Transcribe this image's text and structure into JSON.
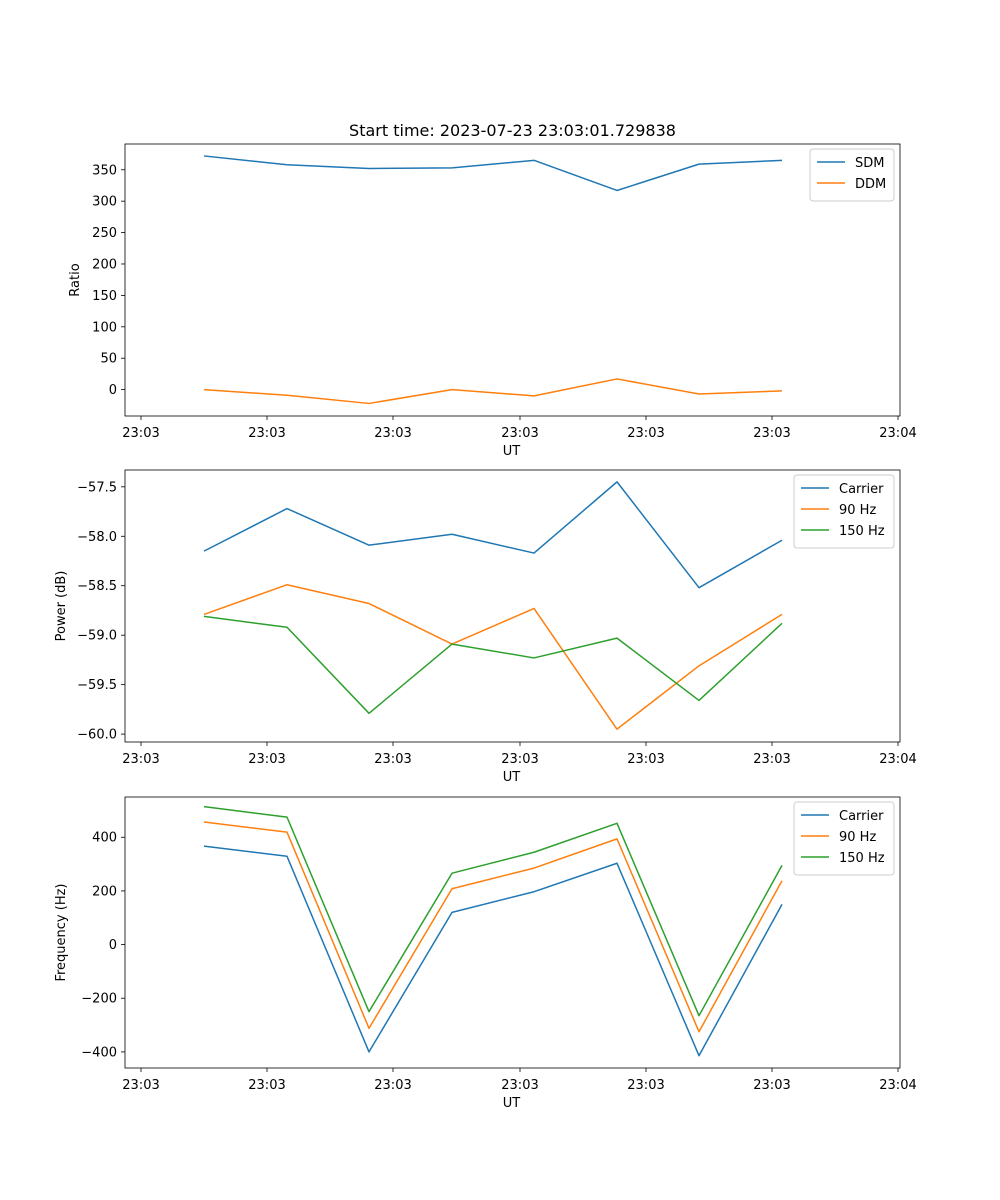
{
  "chart_data": [
    {
      "type": "line",
      "title": "Start time: 2023-07-23 23:03:01.729838",
      "xlabel": "UT",
      "ylabel": "Ratio",
      "x_ticks": [
        "23:03",
        "23:03",
        "23:03",
        "23:03",
        "23:03",
        "23:03",
        "23:04"
      ],
      "ylim": [
        -42,
        391
      ],
      "y_ticks": [
        0,
        50,
        100,
        150,
        200,
        250,
        300,
        350
      ],
      "y_tick_labels": [
        "0",
        "50",
        "100",
        "150",
        "200",
        "250",
        "300",
        "350"
      ],
      "legend": "top-right",
      "series": [
        {
          "name": "SDM",
          "color": "#1f77b4",
          "values": [
            372,
            358,
            352,
            353,
            365,
            317,
            359,
            365
          ]
        },
        {
          "name": "DDM",
          "color": "#ff7f0e",
          "values": [
            0,
            -9,
            -22,
            0,
            -10,
            17,
            -7,
            -2
          ]
        }
      ]
    },
    {
      "type": "line",
      "title": "",
      "xlabel": "UT",
      "ylabel": "Power (dB)",
      "x_ticks": [
        "23:03",
        "23:03",
        "23:03",
        "23:03",
        "23:03",
        "23:03",
        "23:04"
      ],
      "ylim": [
        -60.08,
        -57.33
      ],
      "y_ticks": [
        -60.0,
        -59.5,
        -59.0,
        -58.5,
        -58.0,
        -57.5
      ],
      "y_tick_labels": [
        "−60.0",
        "−59.5",
        "−59.0",
        "−58.5",
        "−58.0",
        "−57.5"
      ],
      "legend": "top-right",
      "series": [
        {
          "name": "Carrier",
          "color": "#1f77b4",
          "values": [
            -58.15,
            -57.72,
            -58.09,
            -57.98,
            -58.17,
            -57.45,
            -58.52,
            -58.04
          ]
        },
        {
          "name": "90 Hz",
          "color": "#ff7f0e",
          "values": [
            -58.79,
            -58.49,
            -58.68,
            -59.09,
            -58.73,
            -59.95,
            -59.31,
            -58.79
          ]
        },
        {
          "name": "150 Hz",
          "color": "#2ca02c",
          "values": [
            -58.81,
            -58.92,
            -59.79,
            -59.09,
            -59.23,
            -59.03,
            -59.66,
            -58.88
          ]
        }
      ]
    },
    {
      "type": "line",
      "title": "",
      "xlabel": "UT",
      "ylabel": "Frequency (Hz)",
      "x_ticks": [
        "23:03",
        "23:03",
        "23:03",
        "23:03",
        "23:03",
        "23:03",
        "23:04"
      ],
      "ylim": [
        -460,
        550
      ],
      "y_ticks": [
        -400,
        -200,
        0,
        200,
        400
      ],
      "y_tick_labels": [
        "−400",
        "−200",
        "0",
        "200",
        "400"
      ],
      "legend": "top-right",
      "series": [
        {
          "name": "Carrier",
          "color": "#1f77b4",
          "values": [
            367,
            329,
            -400,
            120,
            197,
            303,
            -414,
            150
          ]
        },
        {
          "name": "90 Hz",
          "color": "#ff7f0e",
          "values": [
            457,
            419,
            -312,
            208,
            285,
            394,
            -325,
            238
          ]
        },
        {
          "name": "150 Hz",
          "color": "#2ca02c",
          "values": [
            514,
            475,
            -250,
            266,
            344,
            452,
            -265,
            295
          ]
        }
      ]
    }
  ]
}
